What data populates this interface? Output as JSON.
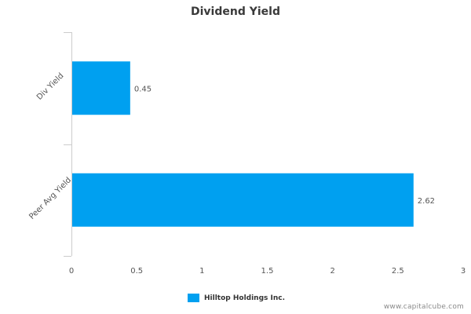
{
  "chart_data": {
    "type": "bar",
    "orientation": "horizontal",
    "title": "Dividend Yield",
    "categories": [
      "Div Yield",
      "Peer Avg Yield"
    ],
    "series": [
      {
        "name": "Hilltop Holdings Inc.",
        "values": [
          0.45,
          2.62
        ],
        "value_labels": [
          "0.45",
          "2.62"
        ]
      }
    ],
    "xlim": [
      0,
      3
    ],
    "x_ticks": [
      0,
      0.5,
      1,
      1.5,
      2,
      2.5,
      3
    ],
    "x_tick_labels": [
      "0",
      "0.5",
      "1",
      "1.5",
      "2",
      "2.5",
      "3"
    ],
    "grid": false,
    "legend": "bottom-center",
    "colors": {
      "bar": "#00A0F0",
      "axis": "#cccccc",
      "text": "#555555"
    }
  },
  "footer": {
    "credit": "www.capitalcube.com"
  }
}
